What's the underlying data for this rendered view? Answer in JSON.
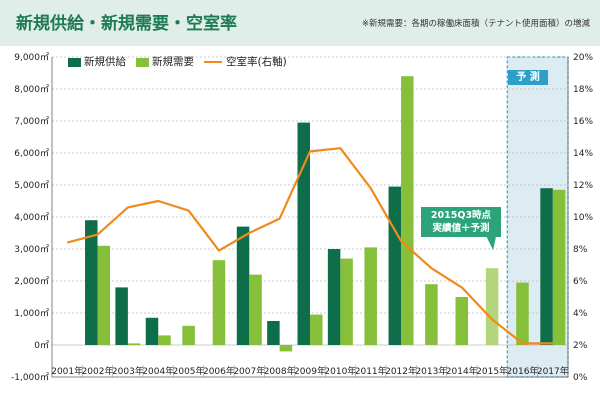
{
  "header": {
    "title": "新規供給・新規需要・空室率",
    "note": "※新規需要：各期の稼働床面積（テナント使用面積）の増減"
  },
  "legend": {
    "supply": "新規供給",
    "demand": "新規需要",
    "vacancy": "空室率(右軸)"
  },
  "callout": {
    "line1": "2015Q3時点",
    "line2": "実績値＋予測"
  },
  "forecast_label": "予 測",
  "colors": {
    "supply": "#0f6e4a",
    "demand": "#86bf3a",
    "demand_partial": "#b3d67c",
    "vacancy": "#f08a1c",
    "forecast_bg": "#dcecf2",
    "forecast_border": "#2da0c8",
    "grid": "#bbbbbb"
  },
  "chart_data": {
    "type": "bar",
    "categories": [
      "2001年",
      "2002年",
      "2003年",
      "2004年",
      "2005年",
      "2006年",
      "2007年",
      "2008年",
      "2009年",
      "2010年",
      "2011年",
      "2012年",
      "2013年",
      "2014年",
      "2015年",
      "2016年",
      "2017年"
    ],
    "series": [
      {
        "name": "新規供給",
        "axis": "left",
        "values": [
          null,
          3900,
          1800,
          850,
          null,
          null,
          3700,
          750,
          6950,
          3000,
          null,
          4950,
          null,
          null,
          null,
          null,
          4900
        ]
      },
      {
        "name": "新規需要",
        "axis": "left",
        "values": [
          null,
          3100,
          50,
          300,
          600,
          2650,
          2200,
          -200,
          950,
          2700,
          3050,
          8400,
          1900,
          1500,
          2400,
          1950,
          4850
        ]
      },
      {
        "name": "空室率(右軸)",
        "axis": "right",
        "type": "line",
        "values": [
          8.4,
          8.9,
          10.6,
          11.0,
          10.4,
          7.9,
          9.0,
          9.9,
          14.1,
          14.3,
          11.8,
          8.5,
          6.8,
          5.6,
          3.6,
          2.1,
          2.1
        ]
      }
    ],
    "partial_bar": {
      "series": "新規需要",
      "category": "2015年"
    },
    "forecast_categories": [
      "2016年",
      "2017年"
    ],
    "y_left": {
      "min": -1000,
      "max": 9000,
      "ticks": [
        "-1,000㎡",
        "0㎡",
        "1,000㎡",
        "2,000㎡",
        "3,000㎡",
        "4,000㎡",
        "5,000㎡",
        "6,000㎡",
        "7,000㎡",
        "8,000㎡",
        "9,000㎡"
      ]
    },
    "y_right": {
      "min": 0,
      "max": 20,
      "ticks": [
        "0%",
        "2%",
        "4%",
        "6%",
        "8%",
        "10%",
        "12%",
        "14%",
        "16%",
        "18%",
        "20%"
      ]
    },
    "grid": "dotted horizontal"
  }
}
